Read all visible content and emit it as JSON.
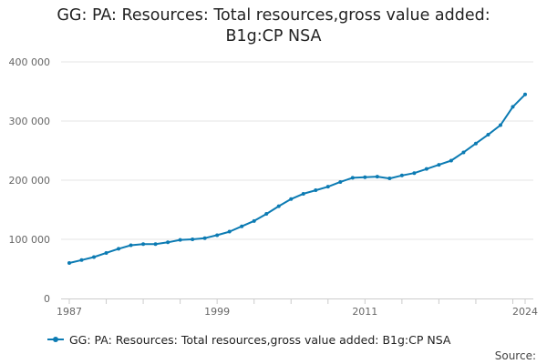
{
  "chart_data": {
    "type": "line",
    "title": "GG: PA: Resources: Total resources,gross value added: B1g:CP NSA",
    "title_lines": [
      "GG: PA: Resources: Total resources,gross value added:",
      "B1g:CP NSA"
    ],
    "xlabel": "",
    "ylabel": "",
    "x_ticks": [
      1987,
      1999,
      2011,
      2024
    ],
    "y_ticks": [
      0,
      100000,
      200000,
      300000,
      400000
    ],
    "y_tick_labels": [
      "0",
      "100 000",
      "200 000",
      "300 000",
      "400 000"
    ],
    "xlim": [
      1987,
      2024
    ],
    "ylim": [
      0,
      400000
    ],
    "series": [
      {
        "name": "GG: PA: Resources: Total resources,gross value added: B1g:CP NSA",
        "color": "#0c7bb3",
        "x": [
          1987,
          1988,
          1989,
          1990,
          1991,
          1992,
          1993,
          1994,
          1995,
          1996,
          1997,
          1998,
          1999,
          2000,
          2001,
          2002,
          2003,
          2004,
          2005,
          2006,
          2007,
          2008,
          2009,
          2010,
          2011,
          2012,
          2013,
          2014,
          2015,
          2016,
          2017,
          2018,
          2019,
          2020,
          2021,
          2022,
          2023,
          2024
        ],
        "values": [
          60000,
          65000,
          70000,
          77000,
          84000,
          90000,
          92000,
          92000,
          95000,
          99000,
          100000,
          102000,
          107000,
          113000,
          122000,
          131000,
          143000,
          156000,
          168000,
          177000,
          183000,
          189000,
          197000,
          204000,
          205000,
          206000,
          203000,
          208000,
          212000,
          219000,
          226000,
          233000,
          247000,
          262000,
          277000,
          293000,
          324000,
          345000
        ]
      }
    ],
    "legend": "bottom-left",
    "grid": true,
    "source_label": "Source:"
  }
}
